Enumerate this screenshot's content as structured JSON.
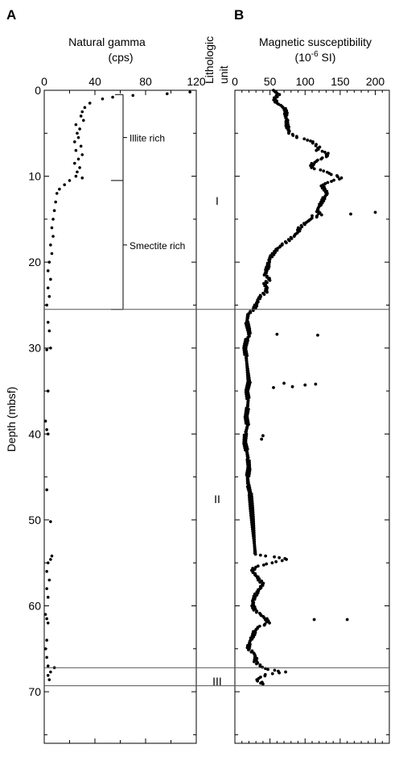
{
  "panels": {
    "a_letter": "A",
    "b_letter": "B"
  },
  "colors": {
    "marks": "#000000",
    "boundary": "#555555",
    "background": "#ffffff"
  },
  "lith_header": [
    "Lithologic",
    "unit"
  ],
  "unit_labels": [
    "I",
    "II",
    "III"
  ],
  "chart_data": [
    {
      "type": "scatter",
      "panel": "A",
      "title_lines": [
        "Natural gamma",
        "(cps)"
      ],
      "ylabel": "Depth (mbsf)",
      "xlim": [
        0,
        120
      ],
      "ylim": [
        76,
        0
      ],
      "y_inverted": true,
      "xticks": [
        0,
        40,
        80,
        120
      ],
      "yticks": [
        0,
        10,
        20,
        30,
        40,
        50,
        60,
        70
      ],
      "grid": false,
      "annotations": [
        {
          "text": "Illite rich",
          "depth_range": [
            0.5,
            10.5
          ]
        },
        {
          "text": "Smectite rich",
          "depth_range": [
            10.5,
            25.5
          ]
        }
      ],
      "points": [
        [
          115,
          0.2
        ],
        [
          97,
          0.4
        ],
        [
          70,
          0.6
        ],
        [
          54,
          0.8
        ],
        [
          46,
          1
        ],
        [
          36,
          1.5
        ],
        [
          32,
          2
        ],
        [
          30,
          2.5
        ],
        [
          29,
          3
        ],
        [
          31,
          3.5
        ],
        [
          25,
          4
        ],
        [
          28,
          4.5
        ],
        [
          26,
          5
        ],
        [
          27,
          5.5
        ],
        [
          24,
          6
        ],
        [
          29,
          6.5
        ],
        [
          25,
          7
        ],
        [
          30,
          7.5
        ],
        [
          27,
          8
        ],
        [
          24,
          8.5
        ],
        [
          28,
          9
        ],
        [
          26,
          9.5
        ],
        [
          25,
          10
        ],
        [
          30,
          10.2
        ],
        [
          20,
          10.5
        ],
        [
          16,
          11
        ],
        [
          12,
          11.5
        ],
        [
          10,
          12
        ],
        [
          9,
          13
        ],
        [
          8,
          14
        ],
        [
          7,
          15
        ],
        [
          6,
          16
        ],
        [
          7,
          17
        ],
        [
          5,
          18
        ],
        [
          6,
          19
        ],
        [
          4,
          20
        ],
        [
          3,
          21
        ],
        [
          5,
          22
        ],
        [
          3,
          23
        ],
        [
          4,
          24
        ],
        [
          2,
          25
        ],
        [
          3,
          27
        ],
        [
          4,
          28
        ],
        [
          5,
          30
        ],
        [
          2,
          30.2
        ],
        [
          3,
          35
        ],
        [
          1,
          38.5
        ],
        [
          2,
          39.5
        ],
        [
          3,
          40
        ],
        [
          2,
          46.5
        ],
        [
          5,
          50.2
        ],
        [
          6,
          54.2
        ],
        [
          5,
          54.6
        ],
        [
          3,
          55
        ],
        [
          2,
          56
        ],
        [
          4,
          57
        ],
        [
          2,
          58
        ],
        [
          3,
          59
        ],
        [
          1,
          61
        ],
        [
          2,
          61.5
        ],
        [
          3,
          62
        ],
        [
          2,
          64
        ],
        [
          1,
          65
        ],
        [
          2,
          66
        ],
        [
          3,
          67
        ],
        [
          8,
          67.2
        ],
        [
          5,
          67.7
        ],
        [
          3,
          68.1
        ],
        [
          4,
          68.6
        ]
      ]
    },
    {
      "type": "scatter",
      "panel": "B",
      "title_lines": [
        "Magnetic susceptibility",
        "(10",
        "-6",
        " SI)"
      ],
      "xlim": [
        0,
        220
      ],
      "ylim": [
        76,
        0
      ],
      "y_inverted": true,
      "xticks": [
        0,
        50,
        100,
        150,
        200
      ],
      "grid": false,
      "unit_boundaries": [
        25.5,
        67.2,
        69.3
      ],
      "profile": [
        [
          55,
          0
        ],
        [
          62,
          0.5
        ],
        [
          56,
          1
        ],
        [
          60,
          1.5
        ],
        [
          70,
          2
        ],
        [
          73,
          2.5
        ],
        [
          72,
          3
        ],
        [
          74,
          3.5
        ],
        [
          74,
          4
        ],
        [
          76,
          4.5
        ],
        [
          78,
          5
        ],
        [
          90,
          5.5
        ],
        [
          104,
          5.8
        ],
        [
          110,
          6
        ],
        [
          114,
          6.3
        ],
        [
          120,
          6.6
        ],
        [
          117,
          7
        ],
        [
          130,
          7.2
        ],
        [
          133,
          7.6
        ],
        [
          122,
          8
        ],
        [
          112,
          8.4
        ],
        [
          108,
          9
        ],
        [
          127,
          9.4
        ],
        [
          139,
          9.8
        ],
        [
          153,
          10.2
        ],
        [
          137,
          10.6
        ],
        [
          124,
          11
        ],
        [
          127,
          11.5
        ],
        [
          132,
          12
        ],
        [
          127,
          12.5
        ],
        [
          124,
          13
        ],
        [
          120,
          13.5
        ],
        [
          117,
          14
        ],
        [
          122,
          14.5
        ],
        [
          108,
          15
        ],
        [
          100,
          15.5
        ],
        [
          92,
          16
        ],
        [
          90,
          16.5
        ],
        [
          83,
          17
        ],
        [
          76,
          17.5
        ],
        [
          67,
          18
        ],
        [
          60,
          18.5
        ],
        [
          55,
          19
        ],
        [
          50,
          19.5
        ],
        [
          48,
          20
        ],
        [
          47,
          20.5
        ],
        [
          45,
          21
        ],
        [
          43,
          21.5
        ],
        [
          50,
          22
        ],
        [
          42,
          22.5
        ],
        [
          45,
          23
        ],
        [
          44,
          23.5
        ],
        [
          36,
          24
        ],
        [
          33,
          24.5
        ],
        [
          30,
          25
        ],
        [
          27,
          25.5
        ],
        [
          19,
          26
        ],
        [
          17,
          27
        ],
        [
          20,
          28
        ],
        [
          21,
          28.5
        ],
        [
          17,
          29
        ],
        [
          14,
          30
        ],
        [
          16,
          31
        ],
        [
          20,
          34
        ],
        [
          17,
          35
        ],
        [
          19,
          36
        ],
        [
          18,
          37
        ],
        [
          16,
          38
        ],
        [
          18,
          39
        ],
        [
          15,
          40
        ],
        [
          14,
          41
        ],
        [
          17,
          42
        ],
        [
          19,
          43
        ],
        [
          20,
          44
        ],
        [
          18,
          45
        ],
        [
          19,
          46
        ],
        [
          22,
          47
        ],
        [
          29,
          54
        ],
        [
          45,
          54.2
        ],
        [
          65,
          54.4
        ],
        [
          74,
          54.6
        ],
        [
          52,
          55
        ],
        [
          28,
          55.5
        ],
        [
          25,
          56
        ],
        [
          31,
          56.5
        ],
        [
          35,
          57
        ],
        [
          40,
          57.5
        ],
        [
          35,
          58
        ],
        [
          31,
          58.5
        ],
        [
          28,
          59
        ],
        [
          26,
          59.5
        ],
        [
          26,
          60
        ],
        [
          28,
          60.5
        ],
        [
          36,
          61
        ],
        [
          44,
          61.5
        ],
        [
          48,
          62
        ],
        [
          33,
          62.5
        ],
        [
          28,
          63
        ],
        [
          26,
          63.5
        ],
        [
          22,
          64
        ],
        [
          20,
          64.5
        ],
        [
          19,
          65
        ],
        [
          27,
          65.5
        ],
        [
          30,
          66
        ],
        [
          29,
          66.5
        ],
        [
          36,
          67
        ],
        [
          42,
          67.3
        ],
        [
          55,
          67.5
        ],
        [
          72,
          67.7
        ],
        [
          55,
          67.9
        ],
        [
          45,
          68
        ],
        [
          37,
          68.3
        ],
        [
          30,
          68.6
        ],
        [
          37,
          68.9
        ],
        [
          40,
          69.1
        ]
      ],
      "outliers": [
        [
          200,
          14.2
        ],
        [
          165,
          14.4
        ],
        [
          110,
          14.6
        ],
        [
          118,
          28.5
        ],
        [
          60,
          28.4
        ],
        [
          115,
          34.2
        ],
        [
          100,
          34.3
        ],
        [
          82,
          34.5
        ],
        [
          70,
          34.1
        ],
        [
          55,
          34.6
        ],
        [
          40,
          40.2
        ],
        [
          38,
          40.6
        ],
        [
          113,
          61.6
        ],
        [
          160,
          61.6
        ]
      ]
    }
  ]
}
